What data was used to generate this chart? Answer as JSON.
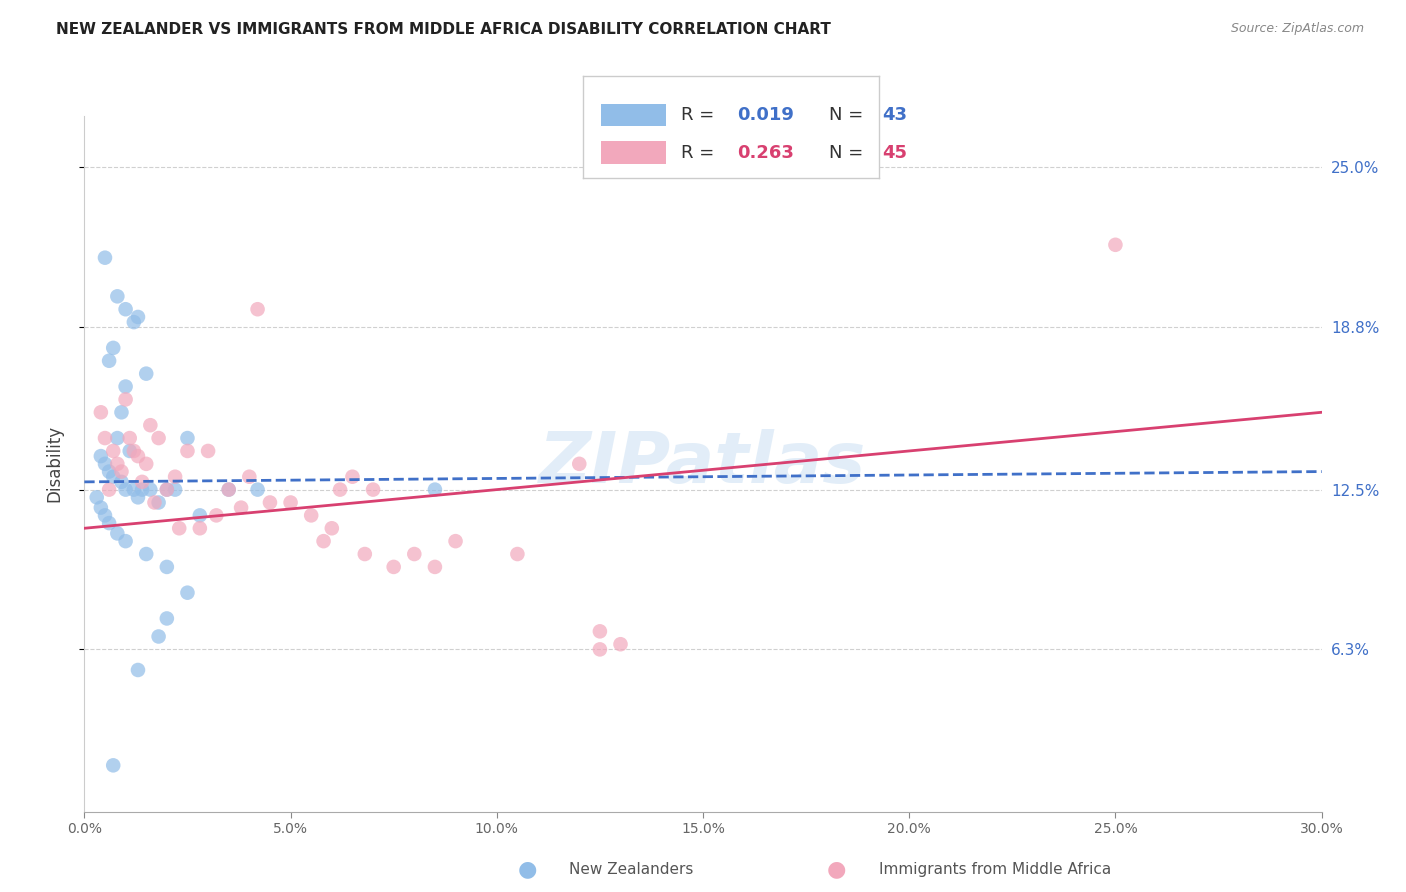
{
  "title": "NEW ZEALANDER VS IMMIGRANTS FROM MIDDLE AFRICA DISABILITY CORRELATION CHART",
  "source": "Source: ZipAtlas.com",
  "ylabel": "Disability",
  "y_ticks_labels": [
    "6.3%",
    "12.5%",
    "18.8%",
    "25.0%"
  ],
  "y_ticks_vals": [
    6.3,
    12.5,
    18.8,
    25.0
  ],
  "xlim": [
    0.0,
    30.0
  ],
  "ylim": [
    0.0,
    27.0
  ],
  "background_color": "#ffffff",
  "grid_color": "#d0d0d0",
  "watermark_text": "ZIPatlas",
  "legend_R1": "0.019",
  "legend_N1": "43",
  "legend_R2": "0.263",
  "legend_N2": "45",
  "blue_color": "#91BDE8",
  "pink_color": "#F2A8BC",
  "blue_line_color": "#4070C8",
  "pink_line_color": "#D84070",
  "blue_text_color": "#4070C8",
  "pink_text_color": "#D84070",
  "blue_points_x": [
    0.5,
    0.8,
    1.0,
    1.2,
    1.3,
    0.7,
    0.6,
    1.5,
    1.0,
    0.9,
    0.8,
    1.1,
    0.4,
    0.5,
    0.6,
    0.7,
    0.9,
    1.0,
    1.2,
    1.3,
    1.4,
    1.6,
    1.8,
    2.0,
    2.2,
    2.5,
    2.8,
    3.5,
    4.2,
    0.3,
    0.4,
    0.5,
    0.6,
    0.8,
    1.0,
    1.5,
    2.0,
    2.5,
    8.5,
    2.0,
    1.8,
    1.3,
    0.7
  ],
  "blue_points_y": [
    21.5,
    20.0,
    19.5,
    19.0,
    19.2,
    18.0,
    17.5,
    17.0,
    16.5,
    15.5,
    14.5,
    14.0,
    13.8,
    13.5,
    13.2,
    13.0,
    12.8,
    12.5,
    12.5,
    12.2,
    12.5,
    12.5,
    12.0,
    12.5,
    12.5,
    14.5,
    11.5,
    12.5,
    12.5,
    12.2,
    11.8,
    11.5,
    11.2,
    10.8,
    10.5,
    10.0,
    9.5,
    8.5,
    12.5,
    7.5,
    6.8,
    5.5,
    1.8
  ],
  "pink_points_x": [
    0.4,
    0.5,
    0.6,
    0.7,
    0.8,
    0.9,
    1.0,
    1.1,
    1.2,
    1.3,
    1.4,
    1.5,
    1.6,
    1.7,
    1.8,
    2.0,
    2.2,
    2.5,
    2.8,
    3.0,
    3.2,
    3.5,
    3.8,
    4.0,
    4.5,
    5.0,
    5.5,
    5.8,
    6.0,
    6.5,
    6.8,
    7.0,
    7.5,
    8.0,
    8.5,
    9.0,
    10.5,
    12.0,
    12.5,
    13.0,
    6.2,
    4.2,
    2.3,
    25.0,
    12.5
  ],
  "pink_points_y": [
    15.5,
    14.5,
    12.5,
    14.0,
    13.5,
    13.2,
    16.0,
    14.5,
    14.0,
    13.8,
    12.8,
    13.5,
    15.0,
    12.0,
    14.5,
    12.5,
    13.0,
    14.0,
    11.0,
    14.0,
    11.5,
    12.5,
    11.8,
    13.0,
    12.0,
    12.0,
    11.5,
    10.5,
    11.0,
    13.0,
    10.0,
    12.5,
    9.5,
    10.0,
    9.5,
    10.5,
    10.0,
    13.5,
    6.3,
    6.5,
    12.5,
    19.5,
    11.0,
    22.0,
    7.0
  ],
  "blue_line_x": [
    0.0,
    30.0
  ],
  "blue_line_y_start": 12.8,
  "blue_line_y_end": 13.2,
  "pink_line_x": [
    0.0,
    30.0
  ],
  "pink_line_y_start": 11.0,
  "pink_line_y_end": 15.5
}
